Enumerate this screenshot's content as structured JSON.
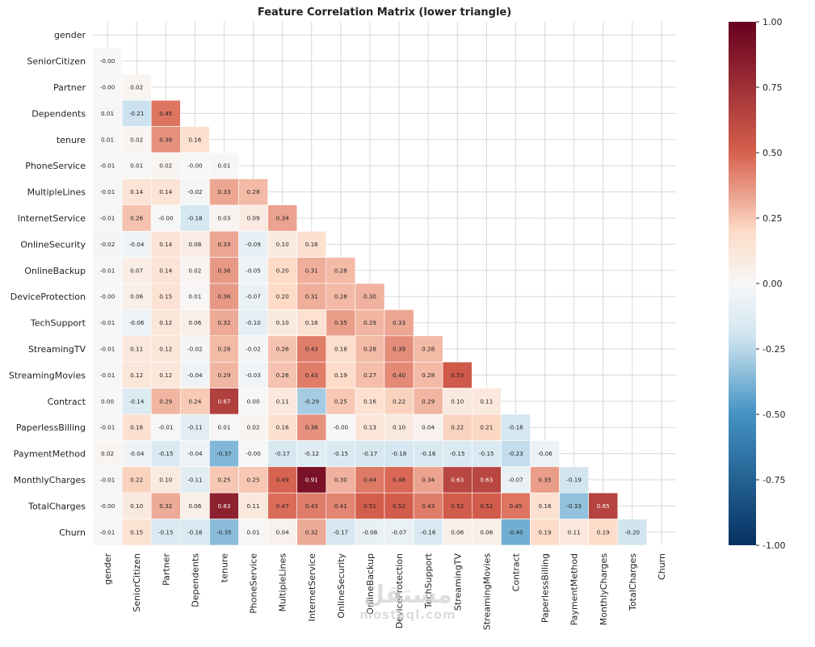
{
  "chart_data": {
    "type": "heatmap",
    "title": "Feature Correlation Matrix (lower triangle)",
    "labels": [
      "gender",
      "SeniorCitizen",
      "Partner",
      "Dependents",
      "tenure",
      "PhoneService",
      "MultipleLines",
      "InternetService",
      "OnlineSecurity",
      "OnlineBackup",
      "DeviceProtection",
      "TechSupport",
      "StreamingTV",
      "StreamingMovies",
      "Contract",
      "PaperlessBilling",
      "PaymentMethod",
      "MonthlyCharges",
      "TotalCharges",
      "Churn"
    ],
    "value_labels": [
      [],
      [
        "-0.00"
      ],
      [
        "-0.00",
        "0.02"
      ],
      [
        "0.01",
        "-0.21",
        "0.45"
      ],
      [
        "0.01",
        "0.02",
        "0.38",
        "0.16"
      ],
      [
        "-0.01",
        "0.01",
        "0.02",
        "-0.00",
        "0.01"
      ],
      [
        "-0.01",
        "0.14",
        "0.14",
        "-0.02",
        "0.33",
        "0.28"
      ],
      [
        "-0.01",
        "0.26",
        "-0.00",
        "-0.18",
        "0.03",
        "0.09",
        "0.34"
      ],
      [
        "-0.02",
        "-0.04",
        "0.14",
        "0.08",
        "0.33",
        "-0.09",
        "0.10",
        "0.16"
      ],
      [
        "-0.01",
        "0.07",
        "0.14",
        "0.02",
        "0.36",
        "-0.05",
        "0.20",
        "0.31",
        "0.28"
      ],
      [
        "-0.00",
        "0.06",
        "0.15",
        "0.01",
        "0.36",
        "-0.07",
        "0.20",
        "0.31",
        "0.28",
        "0.30"
      ],
      [
        "-0.01",
        "-0.06",
        "0.12",
        "0.06",
        "0.32",
        "-0.10",
        "0.10",
        "0.16",
        "0.35",
        "0.29",
        "0.33"
      ],
      [
        "-0.01",
        "0.11",
        "0.12",
        "-0.02",
        "0.28",
        "-0.02",
        "0.26",
        "0.43",
        "0.18",
        "0.28",
        "0.39",
        "0.28"
      ],
      [
        "-0.01",
        "0.12",
        "0.12",
        "-0.04",
        "0.29",
        "-0.03",
        "0.26",
        "0.43",
        "0.19",
        "0.27",
        "0.40",
        "0.28",
        "0.53"
      ],
      [
        "0.00",
        "-0.14",
        "0.29",
        "0.24",
        "0.67",
        "0.00",
        "0.11",
        "-0.29",
        "0.25",
        "0.16",
        "0.22",
        "0.29",
        "0.10",
        "0.11"
      ],
      [
        "-0.01",
        "0.16",
        "-0.01",
        "-0.11",
        "0.01",
        "0.02",
        "0.16",
        "0.38",
        "-0.00",
        "0.13",
        "0.10",
        "0.04",
        "0.22",
        "0.21",
        "-0.18"
      ],
      [
        "0.02",
        "-0.04",
        "-0.15",
        "-0.04",
        "-0.37",
        "-0.00",
        "-0.17",
        "-0.12",
        "-0.15",
        "-0.17",
        "-0.18",
        "-0.16",
        "-0.15",
        "-0.15",
        "-0.23",
        "-0.06"
      ],
      [
        "-0.01",
        "0.22",
        "0.10",
        "-0.11",
        "0.25",
        "0.25",
        "0.49",
        "0.91",
        "0.30",
        "0.44",
        "0.48",
        "0.34",
        "0.63",
        "0.63",
        "-0.07",
        "0.35",
        "-0.19"
      ],
      [
        "-0.00",
        "0.10",
        "0.32",
        "0.06",
        "0.83",
        "0.11",
        "0.47",
        "0.43",
        "0.41",
        "0.51",
        "0.52",
        "0.43",
        "0.52",
        "0.52",
        "0.45",
        "0.16",
        "-0.33",
        "0.65"
      ],
      [
        "-0.01",
        "0.15",
        "-0.15",
        "-0.16",
        "-0.35",
        "0.01",
        "0.04",
        "0.32",
        "-0.17",
        "-0.08",
        "-0.07",
        "-0.16",
        "0.06",
        "0.06",
        "-0.40",
        "0.19",
        "0.11",
        "0.19",
        "-0.20"
      ]
    ],
    "colorbar": {
      "colormap": "RdBu_r",
      "range": [
        -1,
        1
      ],
      "ticks": [
        "1.00",
        "0.75",
        "0.50",
        "0.25",
        "0.00",
        "-0.25",
        "-0.50",
        "-0.75",
        "-1.00"
      ]
    },
    "grid": true
  },
  "colors": {
    "neg_strong": "#053061",
    "neg_mid": "#4393c3",
    "neg_light": "#d1e5f0",
    "neutral": "#f7f7f7",
    "pos_light": "#fddbc7",
    "pos_mid": "#d6604d",
    "pos_strong": "#67001f",
    "grid": "#d8d8d8"
  },
  "watermark": {
    "main": "مستقل",
    "sub": "mostaql.com"
  }
}
